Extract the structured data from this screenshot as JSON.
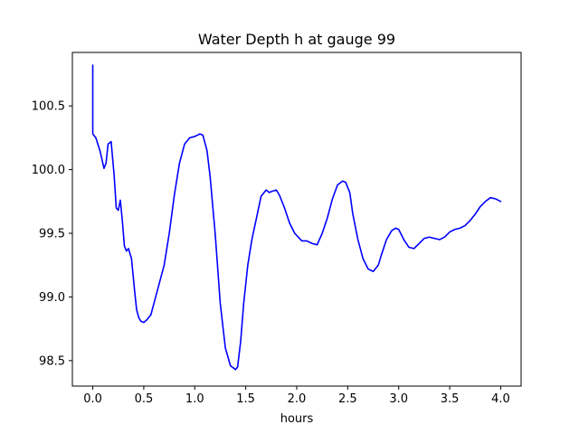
{
  "chart_data": {
    "type": "line",
    "title": "Water Depth h at gauge 99",
    "xlabel": "hours",
    "ylabel": "",
    "xlim": [
      -0.2,
      4.2
    ],
    "ylim": [
      98.3,
      100.92
    ],
    "grid": false,
    "x_ticks": [
      0.0,
      0.5,
      1.0,
      1.5,
      2.0,
      2.5,
      3.0,
      3.5,
      4.0
    ],
    "x_tick_labels": [
      "0.0",
      "0.5",
      "1.0",
      "1.5",
      "2.0",
      "2.5",
      "3.0",
      "3.5",
      "4.0"
    ],
    "y_ticks": [
      98.5,
      99.0,
      99.5,
      100.0,
      100.5
    ],
    "y_tick_labels": [
      "98.5",
      "99.0",
      "99.5",
      "100.0",
      "100.5"
    ],
    "series": [
      {
        "color": "#0000ff",
        "x": [
          0.0,
          0.0,
          0.0,
          0.03,
          0.07,
          0.11,
          0.13,
          0.15,
          0.18,
          0.21,
          0.23,
          0.25,
          0.27,
          0.29,
          0.31,
          0.33,
          0.35,
          0.38,
          0.41,
          0.43,
          0.45,
          0.47,
          0.5,
          0.53,
          0.57,
          0.6,
          0.65,
          0.7,
          0.75,
          0.8,
          0.85,
          0.9,
          0.95,
          1.0,
          1.05,
          1.08,
          1.12,
          1.15,
          1.2,
          1.25,
          1.3,
          1.35,
          1.4,
          1.42,
          1.45,
          1.48,
          1.52,
          1.56,
          1.6,
          1.65,
          1.7,
          1.73,
          1.76,
          1.8,
          1.83,
          1.88,
          1.93,
          1.98,
          2.05,
          2.1,
          2.15,
          2.2,
          2.25,
          2.3,
          2.35,
          2.4,
          2.45,
          2.48,
          2.52,
          2.55,
          2.6,
          2.65,
          2.7,
          2.75,
          2.8,
          2.83,
          2.88,
          2.93,
          2.97,
          3.0,
          3.05,
          3.1,
          3.15,
          3.2,
          3.25,
          3.3,
          3.35,
          3.4,
          3.45,
          3.5,
          3.55,
          3.6,
          3.65,
          3.7,
          3.75,
          3.8,
          3.85,
          3.9,
          3.95,
          4.0
        ],
        "y": [
          100.82,
          100.5,
          100.28,
          100.25,
          100.15,
          100.01,
          100.05,
          100.2,
          100.22,
          99.95,
          99.7,
          99.68,
          99.76,
          99.6,
          99.4,
          99.36,
          99.38,
          99.3,
          99.05,
          98.9,
          98.84,
          98.81,
          98.8,
          98.82,
          98.86,
          98.95,
          99.1,
          99.25,
          99.5,
          99.8,
          100.05,
          100.2,
          100.25,
          100.26,
          100.28,
          100.27,
          100.15,
          99.95,
          99.5,
          98.95,
          98.6,
          98.46,
          98.43,
          98.45,
          98.65,
          98.95,
          99.25,
          99.45,
          99.6,
          99.79,
          99.84,
          99.82,
          99.83,
          99.84,
          99.8,
          99.7,
          99.58,
          99.5,
          99.44,
          99.44,
          99.42,
          99.41,
          99.5,
          99.62,
          99.77,
          99.88,
          99.91,
          99.9,
          99.82,
          99.65,
          99.45,
          99.3,
          99.22,
          99.2,
          99.25,
          99.33,
          99.45,
          99.52,
          99.54,
          99.53,
          99.45,
          99.39,
          99.38,
          99.42,
          99.46,
          99.47,
          99.46,
          99.45,
          99.47,
          99.51,
          99.53,
          99.54,
          99.56,
          99.6,
          99.65,
          99.71,
          99.75,
          99.78,
          99.77,
          99.75
        ]
      }
    ]
  }
}
